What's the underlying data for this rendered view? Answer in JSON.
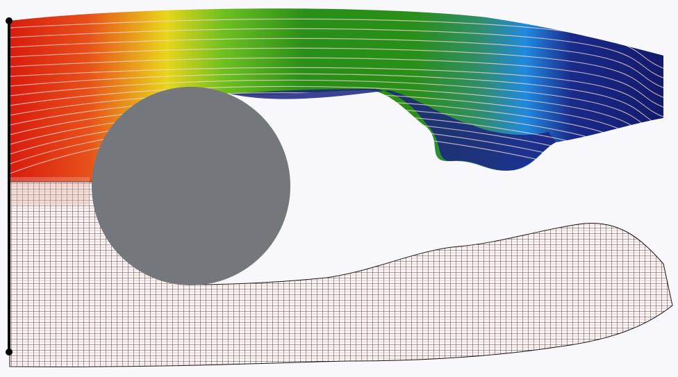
{
  "scene": {
    "background": "#f8f7fb",
    "obstacle_color": "#74777c",
    "mesh_line_color": "#1a1111",
    "mesh_accent_color": "#d6453a",
    "inlet_bar_color": "#000000",
    "streamline_color": "#f3d7d0",
    "colormap": [
      "#d81b0e",
      "#e8501a",
      "#e8d61a",
      "#6bbf1f",
      "#2a8f19",
      "#2f8d6a",
      "#2a82c4",
      "#1f89e0",
      "#1a2a8a",
      "#121a6a"
    ],
    "icons": [
      "circle-obstacle",
      "inlet-boundary",
      "upper-flow-region",
      "lower-mesh-region"
    ]
  }
}
